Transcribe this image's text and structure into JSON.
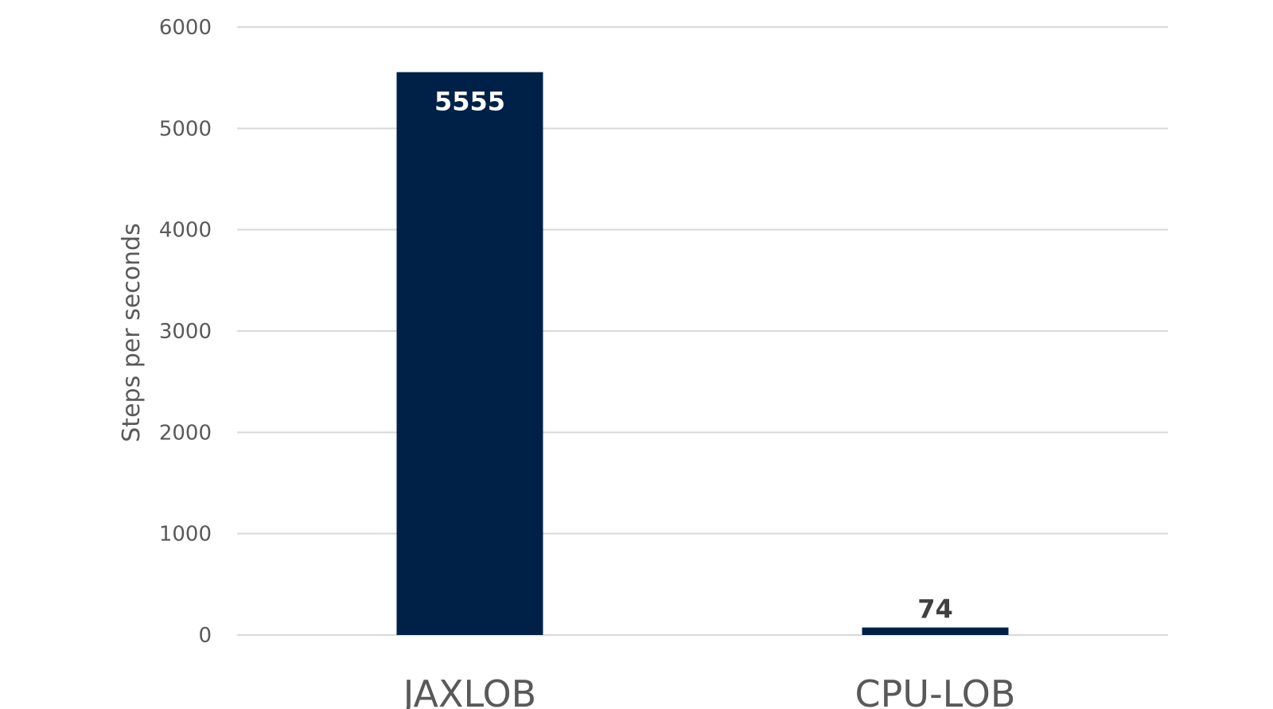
{
  "chart_data": {
    "type": "bar",
    "categories": [
      "JAXLOB",
      "CPU-LOB"
    ],
    "values": [
      5555,
      74
    ],
    "data_labels": [
      "5555",
      "74"
    ],
    "title": "",
    "xlabel": "",
    "ylabel": "Steps per seconds",
    "ylim": [
      0,
      6000
    ],
    "yticks": [
      0,
      1000,
      2000,
      3000,
      4000,
      5000,
      6000
    ],
    "ytick_labels": [
      "0",
      "1000",
      "2000",
      "3000",
      "4000",
      "5000",
      "6000"
    ],
    "grid": true,
    "legend": "none",
    "colors": {
      "bar": "#002147",
      "label_inside": "#ffffff",
      "label_outside": "#404040"
    }
  }
}
